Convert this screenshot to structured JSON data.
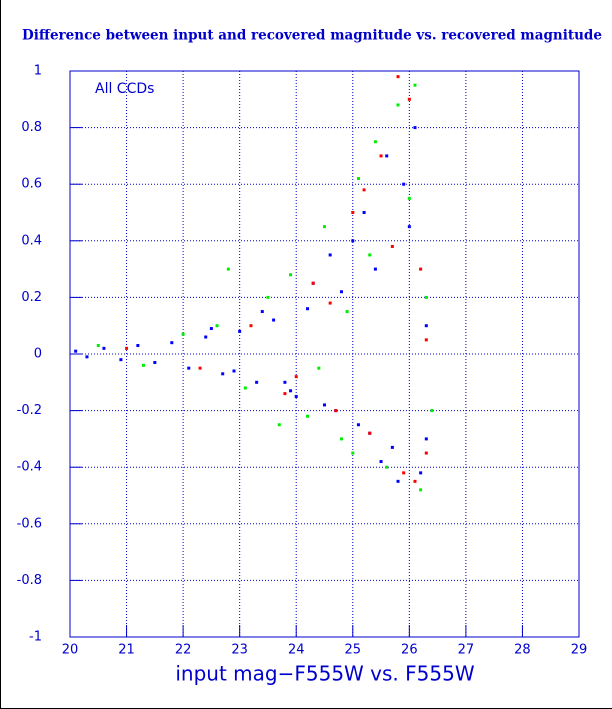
{
  "chart_data": {
    "type": "scatter",
    "title": "Difference between input and recovered magnitude vs. recovered magnitude",
    "x_label": "input mag−F555W vs. F555W",
    "annotation": "All CCDs",
    "xlim": [
      20,
      29
    ],
    "xticks": [
      20,
      21,
      22,
      23,
      24,
      25,
      26,
      27,
      28,
      29
    ],
    "ylim": [
      -1,
      1
    ],
    "yticks": [
      -1,
      -0.8,
      -0.6,
      -0.4,
      -0.2,
      0,
      0.2,
      0.4,
      0.6,
      0.8,
      1
    ],
    "grid": true,
    "series": [
      {
        "color": "#0000ff",
        "x": [
          20.1,
          20.3,
          20.6,
          20.9,
          21.2,
          21.5,
          21.8,
          22.1,
          22.4,
          22.7,
          23.0,
          23.3,
          23.6,
          23.9,
          24.2,
          24.5,
          24.8,
          25.1,
          25.4,
          25.7,
          26.0,
          26.2,
          26.3,
          25.9,
          25.5,
          25.2,
          24.7,
          24.3,
          23.8,
          23.4,
          22.9,
          22.5,
          26.1,
          25.8,
          25.6,
          25.0,
          24.0,
          26.3,
          25.3,
          24.6
        ],
        "values": [
          0.01,
          -0.01,
          0.02,
          -0.02,
          0.03,
          -0.03,
          0.04,
          -0.05,
          0.06,
          -0.07,
          0.08,
          -0.1,
          0.12,
          -0.13,
          0.16,
          -0.18,
          0.22,
          -0.25,
          0.3,
          -0.33,
          0.45,
          -0.42,
          -0.3,
          0.6,
          -0.38,
          0.5,
          -0.2,
          0.25,
          -0.1,
          0.15,
          -0.06,
          0.09,
          0.8,
          -0.45,
          0.7,
          0.4,
          -0.15,
          0.1,
          -0.28,
          0.35
        ]
      },
      {
        "color": "#00ee00",
        "x": [
          20.5,
          21.3,
          22.0,
          22.6,
          23.1,
          23.5,
          23.9,
          24.2,
          24.5,
          24.8,
          25.1,
          25.3,
          25.6,
          25.8,
          26.0,
          26.2,
          26.3,
          25.4,
          24.9,
          24.4,
          23.7,
          26.1,
          25.0,
          22.8,
          26.4
        ],
        "values": [
          0.03,
          -0.04,
          0.07,
          0.1,
          -0.12,
          0.2,
          0.28,
          -0.22,
          0.45,
          -0.3,
          0.62,
          0.35,
          -0.4,
          0.88,
          0.55,
          -0.48,
          0.2,
          0.75,
          0.15,
          -0.05,
          -0.25,
          0.95,
          -0.35,
          0.3,
          -0.2
        ]
      },
      {
        "color": "#ff0000",
        "x": [
          21.0,
          22.3,
          23.2,
          23.8,
          24.3,
          24.7,
          25.0,
          25.3,
          25.5,
          25.7,
          25.9,
          26.0,
          26.2,
          26.3,
          26.1,
          25.2,
          24.6,
          26.3,
          25.8,
          24.0
        ],
        "values": [
          0.02,
          -0.05,
          0.1,
          -0.14,
          0.25,
          -0.2,
          0.5,
          -0.28,
          0.7,
          0.38,
          -0.42,
          0.9,
          0.3,
          -0.35,
          -0.45,
          0.58,
          0.18,
          0.05,
          0.98,
          -0.08
        ]
      }
    ]
  }
}
